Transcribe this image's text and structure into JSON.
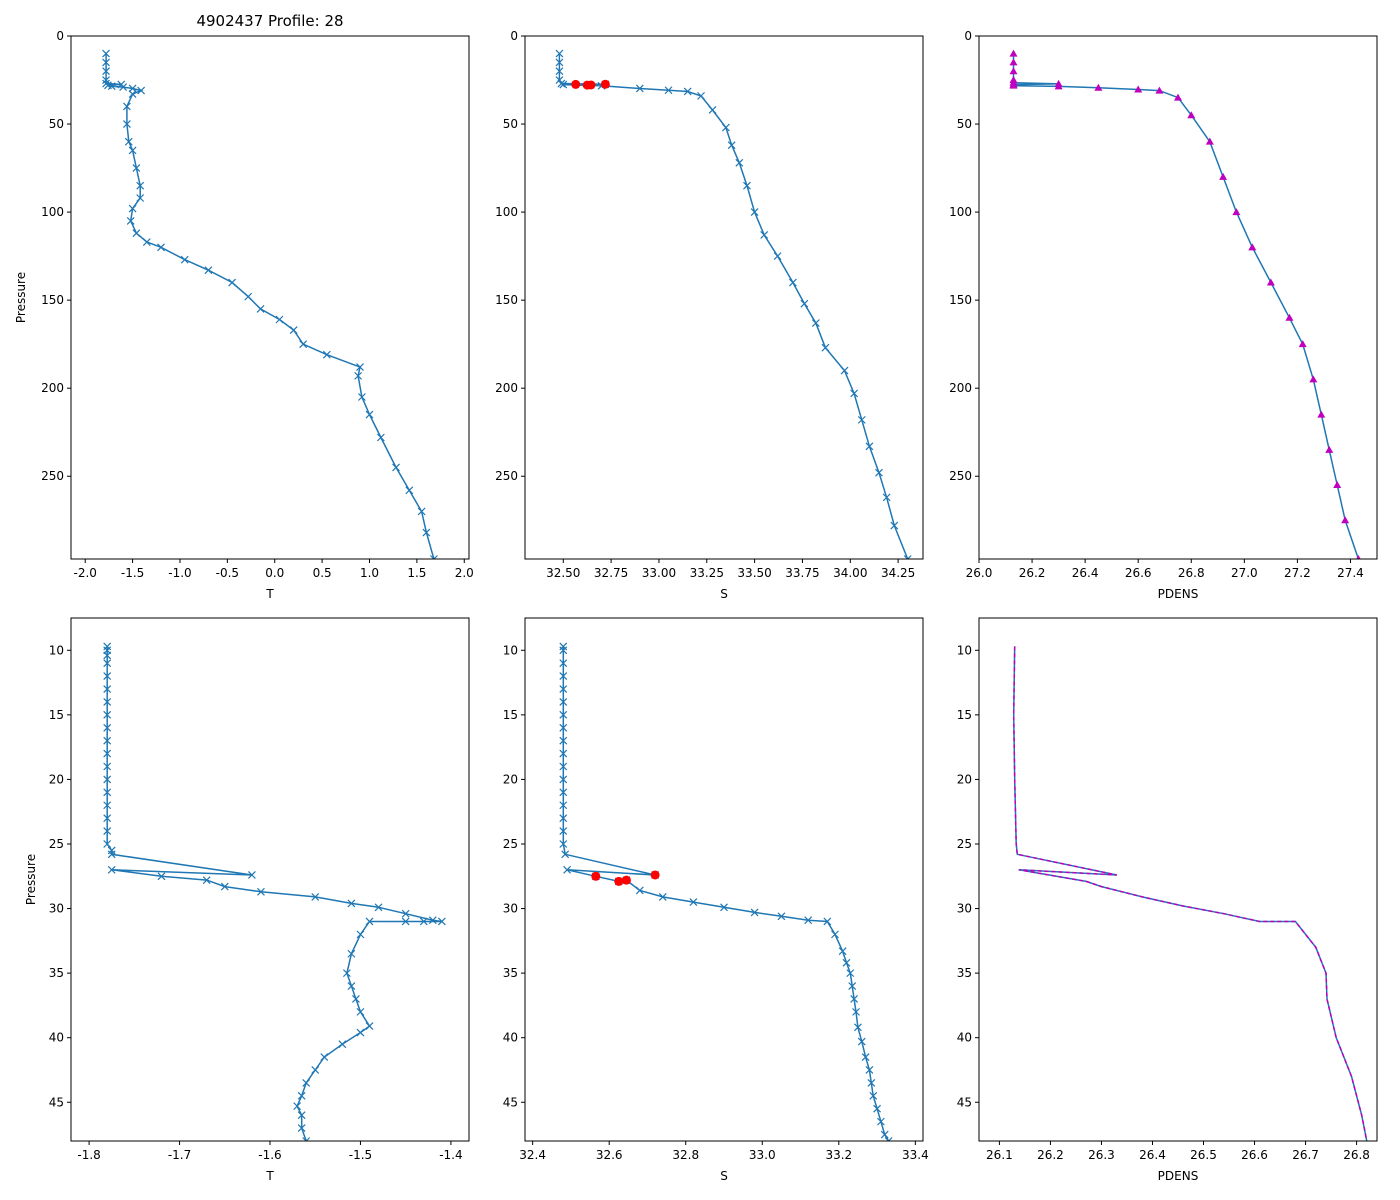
{
  "figure_title": "4902437 Profile: 28",
  "colors": {
    "series": "#1f77b4",
    "flag": "#ff0000",
    "density": "#bf00bf",
    "frame": "#000000"
  },
  "chart_data": [
    {
      "id": "t-full",
      "type": "line",
      "title": "4902437 Profile: 28",
      "xlabel": "T",
      "ylabel": "Pressure",
      "xlim": [
        -2.15,
        2.05
      ],
      "ylim": [
        297,
        0
      ],
      "y_inverted": true,
      "xticks": [
        "-2.0",
        "-1.5",
        "-1.0",
        "-0.5",
        "0.0",
        "0.5",
        "1.0",
        "1.5",
        "2.0"
      ],
      "yticks": [
        "0",
        "50",
        "100",
        "150",
        "200",
        "250"
      ],
      "marker": "x",
      "series": [
        {
          "name": "T",
          "points": [
            [
              -1.78,
              10
            ],
            [
              -1.78,
              15
            ],
            [
              -1.78,
              20
            ],
            [
              -1.78,
              25
            ],
            [
              -1.78,
              27
            ],
            [
              -1.62,
              27.5
            ],
            [
              -1.76,
              28
            ],
            [
              -1.72,
              28.5
            ],
            [
              -1.6,
              29
            ],
            [
              -1.5,
              29.8
            ],
            [
              -1.41,
              31
            ],
            [
              -1.5,
              33
            ],
            [
              -1.56,
              40
            ],
            [
              -1.56,
              50
            ],
            [
              -1.54,
              60
            ],
            [
              -1.5,
              65
            ],
            [
              -1.46,
              75
            ],
            [
              -1.42,
              85
            ],
            [
              -1.42,
              92
            ],
            [
              -1.5,
              98
            ],
            [
              -1.52,
              105
            ],
            [
              -1.46,
              112
            ],
            [
              -1.35,
              117
            ],
            [
              -1.2,
              120
            ],
            [
              -0.95,
              127
            ],
            [
              -0.7,
              133
            ],
            [
              -0.45,
              140
            ],
            [
              -0.28,
              148
            ],
            [
              -0.15,
              155
            ],
            [
              0.05,
              161
            ],
            [
              0.2,
              167
            ],
            [
              0.3,
              175
            ],
            [
              0.55,
              181
            ],
            [
              0.9,
              188
            ],
            [
              0.88,
              193
            ],
            [
              0.92,
              205
            ],
            [
              1.0,
              215
            ],
            [
              1.12,
              228
            ],
            [
              1.28,
              245
            ],
            [
              1.42,
              258
            ],
            [
              1.55,
              270
            ],
            [
              1.6,
              282
            ],
            [
              1.68,
              297
            ]
          ]
        }
      ]
    },
    {
      "id": "s-full",
      "type": "line",
      "title": "",
      "xlabel": "S",
      "ylabel": "",
      "xlim": [
        32.3,
        34.38
      ],
      "ylim": [
        297,
        0
      ],
      "y_inverted": true,
      "xticks": [
        "32.50",
        "32.75",
        "33.00",
        "33.25",
        "33.50",
        "33.75",
        "34.00",
        "34.25"
      ],
      "yticks": [
        "0",
        "50",
        "100",
        "150",
        "200",
        "250"
      ],
      "marker": "x",
      "series": [
        {
          "name": "S",
          "points": [
            [
              32.48,
              10
            ],
            [
              32.48,
              15
            ],
            [
              32.48,
              20
            ],
            [
              32.48,
              25
            ],
            [
              32.49,
              27
            ],
            [
              32.72,
              27.4
            ],
            [
              32.5,
              27.6
            ],
            [
              32.7,
              28.3
            ],
            [
              32.9,
              29.8
            ],
            [
              33.05,
              30.8
            ],
            [
              33.15,
              31.5
            ],
            [
              33.22,
              34
            ],
            [
              33.28,
              42
            ],
            [
              33.35,
              52
            ],
            [
              33.38,
              62
            ],
            [
              33.42,
              72
            ],
            [
              33.46,
              85
            ],
            [
              33.5,
              100
            ],
            [
              33.55,
              113
            ],
            [
              33.62,
              125
            ],
            [
              33.7,
              140
            ],
            [
              33.76,
              152
            ],
            [
              33.82,
              163
            ],
            [
              33.87,
              177
            ],
            [
              33.97,
              190
            ],
            [
              34.02,
              203
            ],
            [
              34.06,
              218
            ],
            [
              34.1,
              233
            ],
            [
              34.15,
              248
            ],
            [
              34.19,
              262
            ],
            [
              34.23,
              278
            ],
            [
              34.3,
              297
            ]
          ]
        }
      ],
      "flagged": [
        [
          32.565,
          27.5
        ],
        [
          32.625,
          27.9
        ],
        [
          32.645,
          27.8
        ],
        [
          32.72,
          27.4
        ]
      ]
    },
    {
      "id": "pdens-full",
      "type": "line",
      "title": "",
      "xlabel": "PDENS",
      "ylabel": "",
      "xlim": [
        26.0,
        27.5
      ],
      "ylim": [
        297,
        0
      ],
      "y_inverted": true,
      "xticks": [
        "26.0",
        "26.2",
        "26.4",
        "26.6",
        "26.8",
        "27.0",
        "27.2",
        "27.4"
      ],
      "yticks": [
        "0",
        "50",
        "100",
        "150",
        "200",
        "250"
      ],
      "marker": "triangle",
      "series": [
        {
          "name": "PDENS",
          "points": [
            [
              26.13,
              10
            ],
            [
              26.13,
              15
            ],
            [
              26.13,
              20
            ],
            [
              26.13,
              25
            ],
            [
              26.13,
              26.5
            ],
            [
              26.3,
              27.2
            ],
            [
              26.13,
              27.6
            ],
            [
              26.13,
              28.2
            ],
            [
              26.3,
              28.6
            ],
            [
              26.45,
              29.4
            ],
            [
              26.6,
              30.4
            ],
            [
              26.68,
              31
            ],
            [
              26.75,
              35
            ],
            [
              26.8,
              45
            ],
            [
              26.87,
              60
            ],
            [
              26.92,
              80
            ],
            [
              26.97,
              100
            ],
            [
              27.03,
              120
            ],
            [
              27.1,
              140
            ],
            [
              27.17,
              160
            ],
            [
              27.22,
              175
            ],
            [
              27.26,
              195
            ],
            [
              27.29,
              215
            ],
            [
              27.32,
              235
            ],
            [
              27.35,
              255
            ],
            [
              27.38,
              275
            ],
            [
              27.43,
              297
            ]
          ]
        }
      ]
    },
    {
      "id": "t-zoom",
      "type": "line",
      "title": "",
      "xlabel": "T",
      "ylabel": "Pressure",
      "xlim": [
        -1.82,
        -1.38
      ],
      "ylim": [
        48,
        7.5
      ],
      "y_inverted": true,
      "xticks": [
        "-1.8",
        "-1.7",
        "-1.6",
        "-1.5",
        "-1.4"
      ],
      "yticks": [
        "10",
        "15",
        "20",
        "25",
        "30",
        "35",
        "40",
        "45"
      ],
      "marker": "x",
      "series": [
        {
          "name": "T",
          "points": [
            [
              -1.78,
              9.7
            ],
            [
              -1.78,
              10
            ],
            [
              -1.78,
              10.4
            ],
            [
              -1.78,
              11
            ],
            [
              -1.78,
              12
            ],
            [
              -1.78,
              13
            ],
            [
              -1.78,
              14
            ],
            [
              -1.78,
              15
            ],
            [
              -1.78,
              16
            ],
            [
              -1.78,
              17
            ],
            [
              -1.78,
              18
            ],
            [
              -1.78,
              19
            ],
            [
              -1.78,
              20
            ],
            [
              -1.78,
              21
            ],
            [
              -1.78,
              22
            ],
            [
              -1.78,
              23
            ],
            [
              -1.78,
              24
            ],
            [
              -1.78,
              25
            ],
            [
              -1.775,
              25.5
            ],
            [
              -1.775,
              25.8
            ],
            [
              -1.62,
              27.4
            ],
            [
              -1.775,
              27
            ],
            [
              -1.72,
              27.5
            ],
            [
              -1.67,
              27.8
            ],
            [
              -1.65,
              28.3
            ],
            [
              -1.61,
              28.7
            ],
            [
              -1.55,
              29.1
            ],
            [
              -1.51,
              29.6
            ],
            [
              -1.48,
              29.9
            ],
            [
              -1.45,
              30.4
            ],
            [
              -1.42,
              30.9
            ],
            [
              -1.41,
              31
            ],
            [
              -1.43,
              31
            ],
            [
              -1.45,
              31
            ],
            [
              -1.49,
              31
            ],
            [
              -1.5,
              32
            ],
            [
              -1.51,
              33.5
            ],
            [
              -1.515,
              35
            ],
            [
              -1.51,
              36
            ],
            [
              -1.505,
              37
            ],
            [
              -1.5,
              38
            ],
            [
              -1.49,
              39.1
            ],
            [
              -1.5,
              39.6
            ],
            [
              -1.52,
              40.5
            ],
            [
              -1.54,
              41.5
            ],
            [
              -1.55,
              42.5
            ],
            [
              -1.56,
              43.5
            ],
            [
              -1.565,
              44.5
            ],
            [
              -1.57,
              45.3
            ],
            [
              -1.565,
              46
            ],
            [
              -1.565,
              47
            ],
            [
              -1.56,
              48
            ]
          ]
        }
      ]
    },
    {
      "id": "s-zoom",
      "type": "line",
      "title": "",
      "xlabel": "S",
      "ylabel": "",
      "xlim": [
        32.38,
        33.42
      ],
      "ylim": [
        48,
        7.5
      ],
      "y_inverted": true,
      "xticks": [
        "32.4",
        "32.6",
        "32.8",
        "33.0",
        "33.2",
        "33.4"
      ],
      "yticks": [
        "10",
        "15",
        "20",
        "25",
        "30",
        "35",
        "40",
        "45"
      ],
      "marker": "x",
      "series": [
        {
          "name": "S",
          "points": [
            [
              32.48,
              9.7
            ],
            [
              32.48,
              10
            ],
            [
              32.48,
              11
            ],
            [
              32.48,
              12
            ],
            [
              32.48,
              13
            ],
            [
              32.48,
              14
            ],
            [
              32.48,
              15
            ],
            [
              32.48,
              16
            ],
            [
              32.48,
              17
            ],
            [
              32.48,
              18
            ],
            [
              32.48,
              19
            ],
            [
              32.48,
              20
            ],
            [
              32.48,
              21
            ],
            [
              32.48,
              22
            ],
            [
              32.48,
              23
            ],
            [
              32.48,
              24
            ],
            [
              32.48,
              25
            ],
            [
              32.485,
              25.8
            ],
            [
              32.72,
              27.4
            ],
            [
              32.49,
              27
            ],
            [
              32.565,
              27.5
            ],
            [
              32.625,
              27.9
            ],
            [
              32.645,
              27.8
            ],
            [
              32.68,
              28.6
            ],
            [
              32.74,
              29.1
            ],
            [
              32.82,
              29.5
            ],
            [
              32.9,
              29.9
            ],
            [
              32.98,
              30.3
            ],
            [
              33.05,
              30.6
            ],
            [
              33.12,
              30.9
            ],
            [
              33.17,
              31
            ],
            [
              33.19,
              32
            ],
            [
              33.21,
              33.3
            ],
            [
              33.22,
              34.2
            ],
            [
              33.23,
              35
            ],
            [
              33.235,
              36
            ],
            [
              33.24,
              37
            ],
            [
              33.245,
              38
            ],
            [
              33.25,
              39.2
            ],
            [
              33.26,
              40.3
            ],
            [
              33.27,
              41.5
            ],
            [
              33.28,
              42.5
            ],
            [
              33.285,
              43.5
            ],
            [
              33.29,
              44.5
            ],
            [
              33.3,
              45.5
            ],
            [
              33.31,
              46.5
            ],
            [
              33.32,
              47.5
            ],
            [
              33.33,
              48
            ]
          ]
        }
      ],
      "flagged": [
        [
          32.565,
          27.5
        ],
        [
          32.625,
          27.9
        ],
        [
          32.645,
          27.8
        ],
        [
          32.72,
          27.4
        ]
      ]
    },
    {
      "id": "pdens-zoom",
      "type": "line",
      "title": "",
      "xlabel": "PDENS",
      "ylabel": "",
      "xlim": [
        26.06,
        26.84
      ],
      "ylim": [
        48,
        7.5
      ],
      "y_inverted": true,
      "xticks": [
        "26.1",
        "26.2",
        "26.3",
        "26.4",
        "26.5",
        "26.6",
        "26.7",
        "26.8"
      ],
      "yticks": [
        "10",
        "15",
        "20",
        "25",
        "30",
        "35",
        "40",
        "45"
      ],
      "marker": "none",
      "series": [
        {
          "name": "PDENS",
          "points": [
            [
              26.13,
              9.7
            ],
            [
              26.128,
              15
            ],
            [
              26.13,
              20
            ],
            [
              26.133,
              25
            ],
            [
              26.135,
              25.8
            ],
            [
              26.33,
              27.4
            ],
            [
              26.138,
              27
            ],
            [
              26.27,
              27.9
            ],
            [
              26.3,
              28.3
            ],
            [
              26.38,
              29.1
            ],
            [
              26.46,
              29.8
            ],
            [
              26.54,
              30.4
            ],
            [
              26.61,
              31
            ],
            [
              26.68,
              31
            ],
            [
              26.72,
              33
            ],
            [
              26.74,
              35
            ],
            [
              26.742,
              37
            ],
            [
              26.76,
              40
            ],
            [
              26.79,
              43
            ],
            [
              26.81,
              46
            ],
            [
              26.82,
              48
            ]
          ]
        }
      ],
      "overlay_dashed": true
    }
  ]
}
